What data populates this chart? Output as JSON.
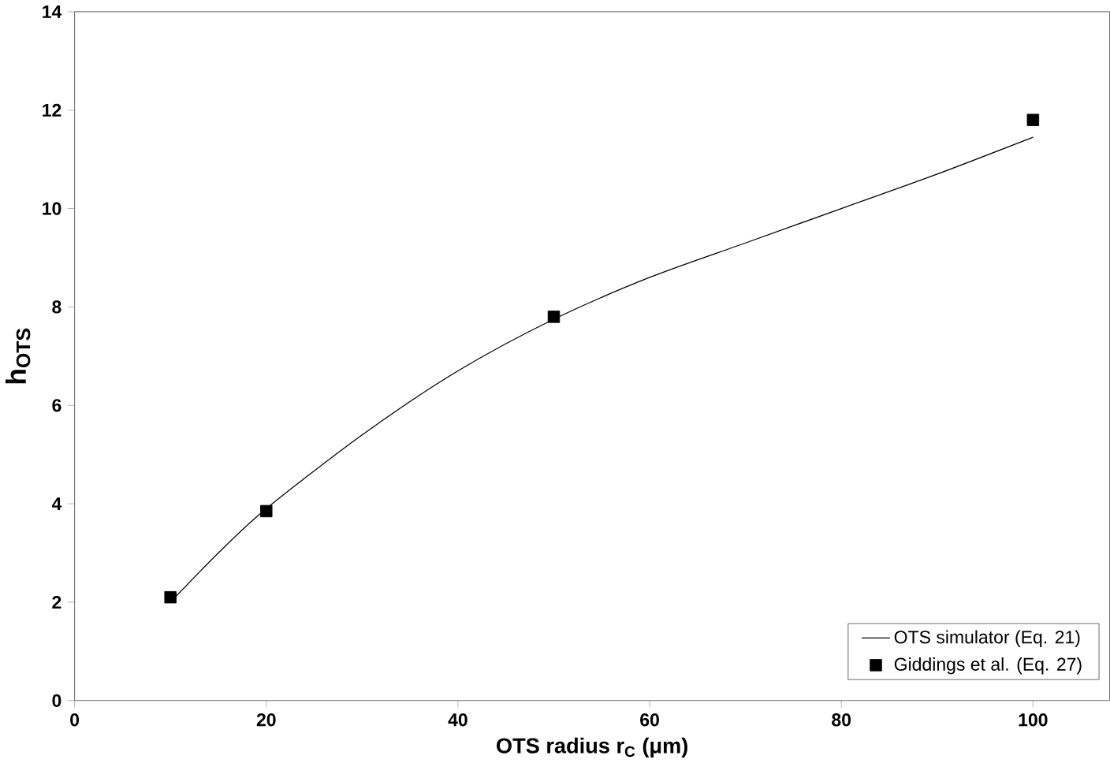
{
  "chart_data": {
    "type": "line",
    "xlabel": "OTS radius r$_{C}$ (μm)",
    "ylabel": "h$_{OTS}$",
    "xlim": [
      0,
      108
    ],
    "xticks": [
      0,
      20,
      40,
      60,
      80,
      100
    ],
    "ylim": [
      0,
      14
    ],
    "yticks": [
      0,
      2,
      4,
      6,
      8,
      10,
      12,
      14
    ],
    "legend": "bottom right",
    "grid": false,
    "series": [
      {
        "name": "OTS simulator (Eq. 21)",
        "color": "#000000",
        "marker": "none",
        "line_style": "solid",
        "x": [
          10,
          15,
          20,
          30,
          40,
          50,
          60,
          70,
          80,
          90,
          100
        ],
        "values": [
          2.0,
          3.0,
          3.9,
          5.4,
          6.7,
          7.75,
          8.6,
          9.3,
          10.0,
          10.7,
          11.45
        ]
      },
      {
        "name": "Giddings et al. (Eq. 27)",
        "type": "scatter",
        "color": "#000000",
        "marker": "square",
        "x": [
          10,
          20,
          50,
          100
        ],
        "values": [
          2.1,
          3.85,
          7.8,
          11.8
        ]
      }
    ]
  }
}
